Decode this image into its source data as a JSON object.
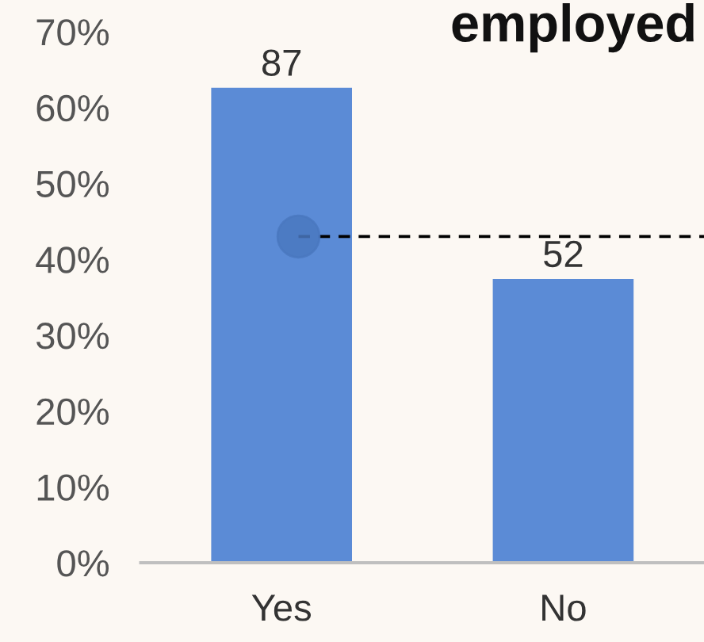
{
  "chart_data": {
    "type": "bar",
    "title": "employed",
    "categories": [
      "Yes",
      "No"
    ],
    "values": [
      62.6,
      37.4
    ],
    "color": "#5b8bd6",
    "annotations": [
      {
        "text": "87",
        "x": "Yes",
        "y": 62.6
      },
      {
        "text": "52",
        "x": "No",
        "y": 37.4
      }
    ],
    "ylim": [
      0,
      70
    ],
    "yticks": [
      {
        "value": 0,
        "label": "0%"
      },
      {
        "value": 10,
        "label": "10%"
      },
      {
        "value": 20,
        "label": "20%"
      },
      {
        "value": 30,
        "label": "30%"
      },
      {
        "value": 40,
        "label": "40%"
      },
      {
        "value": 50,
        "label": "50%"
      },
      {
        "value": 60,
        "label": "60%"
      },
      {
        "value": 70,
        "label": "70%"
      }
    ],
    "ref_lines": [
      {
        "axis": "y",
        "value": 43,
        "color": "#000000",
        "line_style": "dashed"
      }
    ],
    "grid": false
  }
}
